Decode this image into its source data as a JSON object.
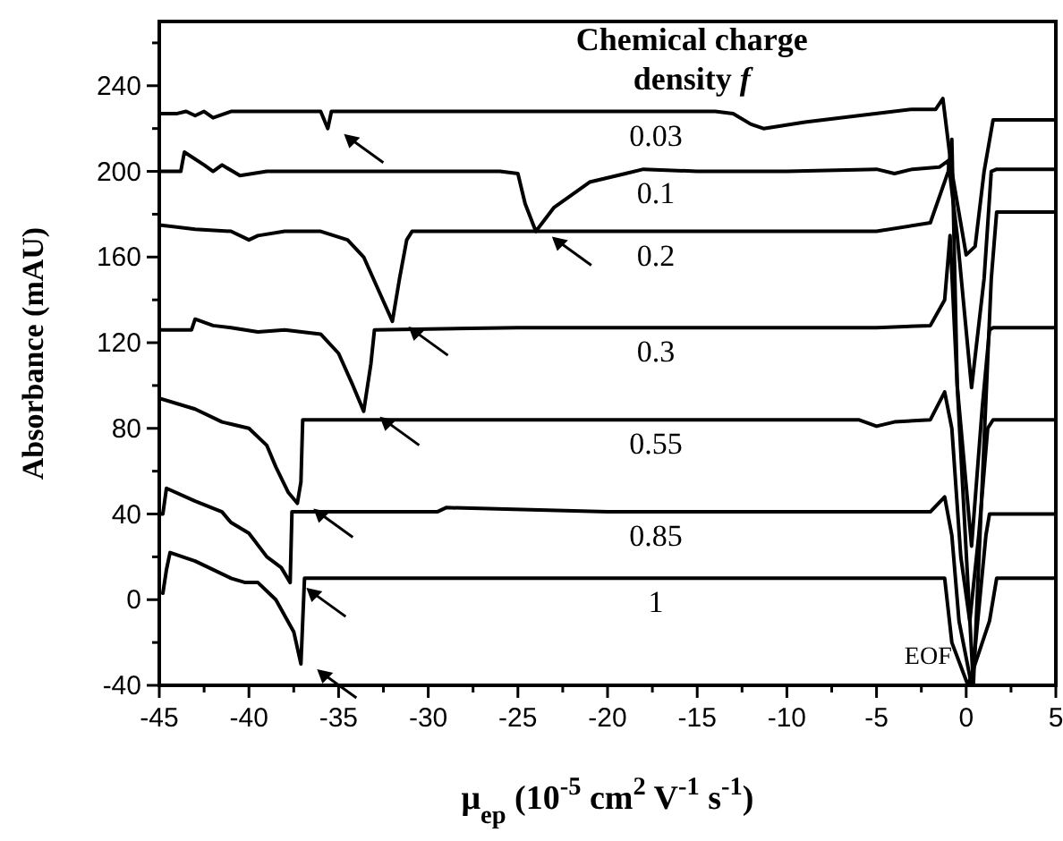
{
  "chart_data": {
    "type": "line",
    "xlabel": "μ$_{ep}$ (10$^{-5}$ cm$^{2}$ V$^{-1}$ s$^{-1}$)",
    "ylabel": "Absorbance (mAU)",
    "legend_title": "Chemical charge density f",
    "xlim": [
      -45,
      5
    ],
    "ylim": [
      -40,
      270
    ],
    "xticks": [
      -45,
      {
        "value": -42.5,
        "label": null
      },
      -40,
      {
        "value": -37.5,
        "label": null
      },
      -35,
      {
        "value": -32.5,
        "label": null
      },
      -30,
      {
        "value": -27.5,
        "label": null
      },
      -25,
      {
        "value": -22.5,
        "label": null
      },
      -20,
      {
        "value": -17.5,
        "label": null
      },
      -15,
      {
        "value": -12.5,
        "label": null
      },
      -10,
      {
        "value": -7.5,
        "label": null
      },
      -5,
      {
        "value": -2.5,
        "label": null
      },
      0,
      {
        "value": 2.5,
        "label": null
      },
      5
    ],
    "yticks": [
      -40,
      {
        "value": -20,
        "label": null
      },
      0,
      {
        "value": 20,
        "label": null
      },
      40,
      {
        "value": 60,
        "label": null
      },
      80,
      {
        "value": 100,
        "label": null
      },
      120,
      {
        "value": 140,
        "label": null
      },
      160,
      {
        "value": 180,
        "label": null
      },
      200,
      {
        "value": 220,
        "label": null
      },
      240,
      {
        "value": 260,
        "label": null
      }
    ],
    "grid": false,
    "legend": "top",
    "marker": "none",
    "line_style": "solid",
    "annotations": [
      "EOF"
    ],
    "series": [
      {
        "name": "0.03",
        "color": "#000000",
        "x": [
          -45,
          -44,
          -43.5,
          -43,
          -42.5,
          -42,
          -41,
          -38,
          -36,
          -35.6,
          -35.4,
          -35,
          -30,
          -20,
          -14,
          -13,
          -12,
          -11.3,
          -9,
          -6,
          -3,
          -1.7,
          -1.3,
          -0.8,
          0,
          0.5,
          1.0,
          1.5,
          2,
          5
        ],
        "values": [
          227,
          227,
          228,
          226,
          228,
          225,
          228,
          228,
          228,
          220,
          228,
          228,
          228,
          228,
          228,
          227,
          222,
          220,
          223,
          226,
          229,
          229,
          234,
          200,
          161,
          165,
          200,
          224,
          224,
          224
        ]
      },
      {
        "name": "0.1",
        "color": "#000000",
        "x": [
          -45,
          -43.8,
          -43.6,
          -42.5,
          -42,
          -41.5,
          -40.5,
          -39,
          -35,
          -30,
          -26,
          -25,
          -24.6,
          -24.0,
          -23,
          -21,
          -19,
          -18,
          -15,
          -10,
          -5,
          -4,
          -3,
          -1.5,
          -1.0,
          -0.5,
          0.3,
          1.0,
          1.4,
          1.7,
          5
        ],
        "values": [
          200,
          200,
          209,
          203,
          200,
          203,
          198,
          200,
          200,
          200,
          200,
          199,
          185,
          172,
          183,
          195,
          199,
          201,
          200,
          200,
          201,
          199,
          201,
          202,
          205,
          170,
          99,
          150,
          200,
          201,
          201
        ]
      },
      {
        "name": "0.2",
        "color": "#000000",
        "x": [
          -45,
          -43,
          -41,
          -40,
          -39.5,
          -38,
          -36,
          -34.5,
          -33.6,
          -32.8,
          -32.0,
          -31.6,
          -31.2,
          -30.9,
          -25,
          -15,
          -5,
          -2,
          -1.0,
          -0.8,
          -0.5,
          0.4,
          1.4,
          1.7,
          5
        ],
        "values": [
          175,
          173,
          172,
          168,
          170,
          172,
          172,
          168,
          160,
          145,
          130,
          150,
          168,
          172,
          172,
          172,
          172,
          176,
          200,
          215,
          100,
          -40,
          150,
          181,
          181
        ]
      },
      {
        "name": "0.3",
        "color": "#000000",
        "x": [
          -45,
          -43.2,
          -43,
          -42,
          -41,
          -39.5,
          -38,
          -36,
          -35,
          -34.2,
          -33.6,
          -33.2,
          -33.0,
          -25,
          -15,
          -5,
          -2,
          -1.2,
          -0.9,
          -0.5,
          0.3,
          0.9,
          1.3,
          1.5,
          5
        ],
        "values": [
          126,
          126,
          131,
          128,
          127,
          125,
          126,
          124,
          115,
          100,
          88,
          110,
          126,
          127,
          127,
          127,
          128,
          140,
          170,
          100,
          25,
          90,
          126,
          127,
          127
        ]
      },
      {
        "name": "0.55",
        "color": "#000000",
        "x": [
          -45,
          -43,
          -41.5,
          -41,
          -40,
          -39,
          -38.5,
          -37.8,
          -37.3,
          -37.1,
          -37.0,
          -30,
          -20,
          -6,
          -5,
          -4,
          -2,
          -1.2,
          -0.8,
          -0.3,
          0.2,
          0.7,
          1.2,
          1.5,
          5
        ],
        "values": [
          94,
          89,
          83,
          82,
          80,
          72,
          62,
          50,
          45,
          55,
          84,
          84,
          84,
          84,
          81,
          83,
          84,
          97,
          80,
          20,
          -10,
          30,
          80,
          84,
          84
        ]
      },
      {
        "name": "0.85",
        "color": "#000000",
        "x": [
          -45,
          -44.8,
          -44.6,
          -43,
          -41.5,
          -41,
          -40,
          -39,
          -38.2,
          -37.7,
          -37.6,
          -35,
          -29.5,
          -29,
          -20,
          -5,
          -2,
          -1.2,
          -0.8,
          -0.4,
          0.3,
          1.1,
          1.3,
          5
        ],
        "values": [
          40,
          40,
          52,
          46,
          41,
          36,
          31,
          20,
          15,
          8,
          41,
          41,
          41,
          43,
          41,
          41,
          41,
          48,
          30,
          -10,
          -40,
          30,
          40,
          40
        ]
      },
      {
        "name": "1",
        "color": "#000000",
        "x": [
          -44.8,
          -44.6,
          -44.4,
          -43,
          -41,
          -40.2,
          -39.5,
          -38.5,
          -37.5,
          -37.1,
          -37.0,
          -36.9,
          -30,
          -20,
          -10,
          -1.2,
          -0.8,
          0.1,
          1.3,
          1.7,
          5
        ],
        "values": [
          3,
          14,
          22,
          18,
          10,
          8,
          8,
          0,
          -15,
          -30,
          -10,
          10,
          10,
          10,
          10,
          10,
          -20,
          -40,
          -10,
          10,
          10
        ]
      }
    ]
  }
}
